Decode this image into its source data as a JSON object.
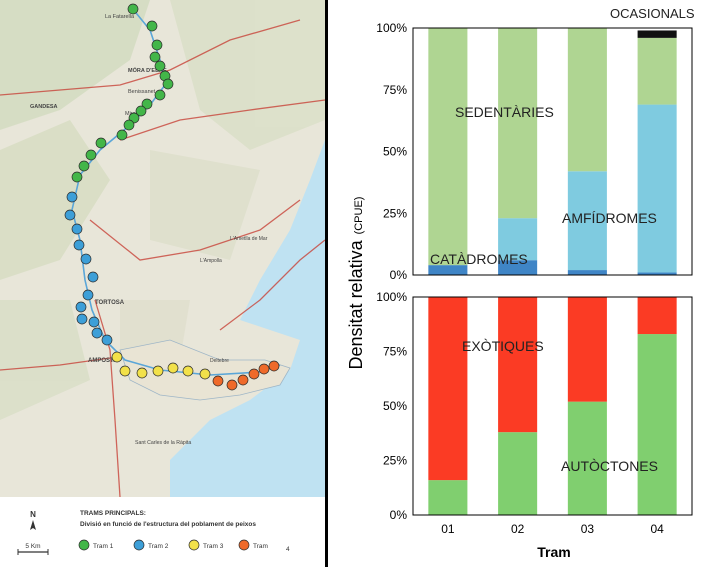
{
  "map": {
    "legend_title": "TRAMS PRINCIPALS:",
    "legend_subtitle": "Divisió en funció de l'estructura del poblament de peixos",
    "north_label": "N",
    "scale_label": "5 Km",
    "legend_items": [
      {
        "label": "Tram 1",
        "color": "#43b649"
      },
      {
        "label": "Tram 2",
        "color": "#3d9fd8"
      },
      {
        "label": "Tram 3",
        "color": "#f2e14a"
      },
      {
        "label": "Tram",
        "color": "#ef6a2a"
      }
    ],
    "legend_extra": "4",
    "places": [
      "La Fatarella",
      "MÓRA D'EBRE",
      "Benissanet",
      "Miravet",
      "GANDESA",
      "TORTOSA",
      "AMPOSTA",
      "Deltebre",
      "Sant Carles de la Ràpita",
      "L'Ampolla",
      "L'Ametlla de Mar"
    ]
  },
  "y_axis_title": "Densitat relativa",
  "y_axis_unit": "(CPUE)",
  "x_axis_title": "Tram",
  "chart_data": [
    {
      "type": "bar",
      "stacked": true,
      "title": "",
      "categories": [
        "01",
        "02",
        "03",
        "04"
      ],
      "series": [
        {
          "name": "CATÀDROMES",
          "color": "#3f85c6",
          "values": [
            4,
            6,
            2,
            1
          ]
        },
        {
          "name": "AMFÍDROMES",
          "color": "#7fcbe0",
          "values": [
            0,
            17,
            40,
            68
          ]
        },
        {
          "name": "SEDENTÀRIES",
          "color": "#afd592",
          "values": [
            96,
            77,
            58,
            27
          ]
        },
        {
          "name": "OCASIONALS",
          "color": "#111111",
          "values": [
            0,
            0,
            0,
            3
          ]
        }
      ],
      "annotations": [
        "SEDENTÀRIES",
        "CATÀDROMES",
        "AMFÍDROMES",
        "OCASIONALS"
      ],
      "ylim": [
        0,
        100
      ],
      "ytick_labels": [
        "0%",
        "25%",
        "50%",
        "75%",
        "100%"
      ],
      "xlabel": "",
      "ylabel": "Densitat relativa (CPUE)"
    },
    {
      "type": "bar",
      "stacked": true,
      "title": "",
      "categories": [
        "01",
        "02",
        "03",
        "04"
      ],
      "series": [
        {
          "name": "AUTÒCTONES",
          "color": "#80cf6f",
          "values": [
            16,
            38,
            52,
            83
          ]
        },
        {
          "name": "EXÒTIQUES",
          "color": "#fb3b24",
          "values": [
            84,
            62,
            48,
            17
          ]
        }
      ],
      "annotations": [
        "EXÒTIQUES",
        "AUTÒCTONES"
      ],
      "ylim": [
        0,
        100
      ],
      "ytick_labels": [
        "0%",
        "25%",
        "50%",
        "75%",
        "100%"
      ],
      "xlabel": "Tram",
      "ylabel": "Densitat relativa (CPUE)"
    }
  ]
}
